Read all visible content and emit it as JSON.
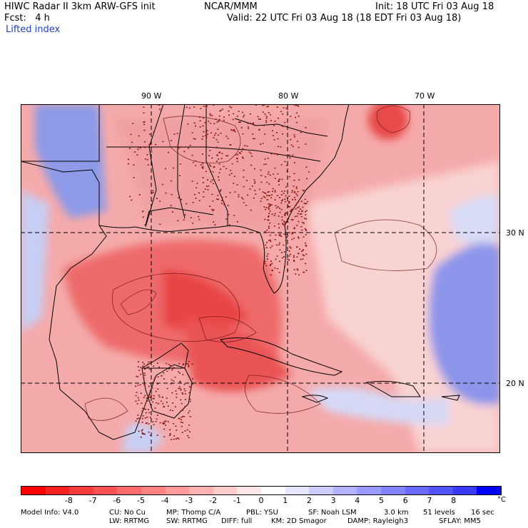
{
  "header": {
    "model": "HIWC Radar II 3km ARW-GFS init",
    "org": "NCAR/MMM",
    "init": "Init: 18 UTC Fri 03 Aug 18",
    "fcst": "Fcst:   4 h",
    "valid": "Valid: 22 UTC Fri 03 Aug 18 (18 EDT Fri 03 Aug 18)",
    "field": "Lifted index"
  },
  "map": {
    "lon_labels": [
      "90 W",
      "80 W",
      "70 W"
    ],
    "lat_labels": [
      "30 N",
      "20 N"
    ],
    "colors": {
      "ocean_base": "#f6a3a3",
      "land_base": "#f7c6c6",
      "strong": "#ee4f4f",
      "cold": "#6a78e6",
      "grid": "#000000"
    }
  },
  "colorbar": {
    "ticks": [
      "-8",
      "-7",
      "-6",
      "-5",
      "-4",
      "-3",
      "-2",
      "-1",
      "0",
      "1",
      "2",
      "3",
      "4",
      "5",
      "6",
      "7",
      "8"
    ],
    "unit": "°C",
    "colors": [
      "#ff0000",
      "#ff2020",
      "#ff3a3a",
      "#ff5252",
      "#ff6a6a",
      "#ff8282",
      "#ff9a9a",
      "#ffb2b2",
      "#ffcccc",
      "#ffe6e6",
      "#ffffff",
      "#e6e6ff",
      "#ccccff",
      "#b2b2ff",
      "#9a9aff",
      "#8282ff",
      "#6a6aff",
      "#5252ff",
      "#3a3aff",
      "#0000ff"
    ]
  },
  "footer": {
    "line1": [
      "Model Info: V4.0",
      "CU: No Cu",
      "MP: Thomp C/A",
      "PBL: YSU",
      "SF: Noah LSM",
      "3.0 km",
      "51 levels",
      "16 sec"
    ],
    "line2": [
      "LW: RRTMG",
      "SW: RRTMG",
      "DIFF: full",
      "KM: 2D Smagor",
      "DAMP: Rayleigh3",
      "SFLAY: MM5"
    ]
  }
}
